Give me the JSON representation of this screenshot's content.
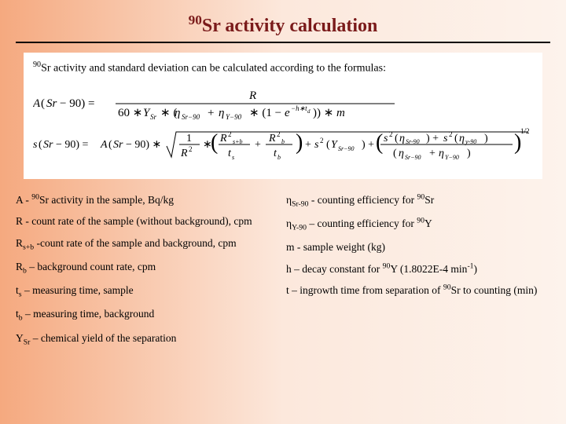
{
  "title": {
    "sup": "90",
    "rest": "Sr activity calculation"
  },
  "intro": {
    "sup": "90",
    "rest": "Sr activity and standard deviation can be calculated according to the formulas:"
  },
  "defs_left": [
    {
      "k": "A",
      "ks": "",
      "ksup": "",
      "mid": " - ",
      "pre_sup": "90",
      "txt": "Sr activity in the sample, Bq/kg"
    },
    {
      "k": "R",
      "ks": "",
      "ksup": "",
      "mid": " - ",
      "pre_sup": "",
      "txt": "count rate of the sample (without background), cpm"
    },
    {
      "k": "R",
      "ks": "s+b",
      "ksup": "",
      "mid": " -",
      "pre_sup": "",
      "txt": "count rate of the sample and background, cpm"
    },
    {
      "k": "R",
      "ks": "b",
      "ksup": "",
      "mid": " – ",
      "pre_sup": "",
      "txt": "background count rate, cpm"
    },
    {
      "k": "t",
      "ks": "s",
      "ksup": "",
      "mid": " – ",
      "pre_sup": "",
      "txt": "measuring time, sample"
    },
    {
      "k": "t",
      "ks": "b",
      "ksup": "",
      "mid": " – ",
      "pre_sup": "",
      "txt": "measuring time, background"
    },
    {
      "k": "Y",
      "ks": "Sr",
      "ksup": "",
      "mid": " – ",
      "pre_sup": "",
      "txt": "chemical yield of the separation"
    }
  ],
  "defs_right": [
    {
      "k": "η",
      "ks": "Sr-90",
      "mid": " - ",
      "txt": "counting efficiency for ",
      "post_sup": "90",
      "post": "Sr"
    },
    {
      "k": "η",
      "ks": "Y-90",
      "mid": " – ",
      "txt": "counting efficiency for ",
      "post_sup": "90",
      "post": "Y"
    },
    {
      "k": "m",
      "ks": "",
      "mid": " - ",
      "txt": "sample weight (kg)",
      "post_sup": "",
      "post": ""
    },
    {
      "k": "h",
      "ks": "",
      "mid": " – ",
      "txt": "decay constant for ",
      "post_sup": "90",
      "post": "Y (1.8022E-4 min",
      "post2_sup": "-1",
      "post2": ")"
    },
    {
      "k": "t",
      "ks": "",
      "mid": " – ",
      "txt": "ingrowth time from separation of ",
      "post_sup": "90",
      "post": "Sr to counting (min)"
    }
  ],
  "colors": {
    "title": "#7a1a1a",
    "rule": "#000000",
    "box_bg": "#ffffff"
  }
}
